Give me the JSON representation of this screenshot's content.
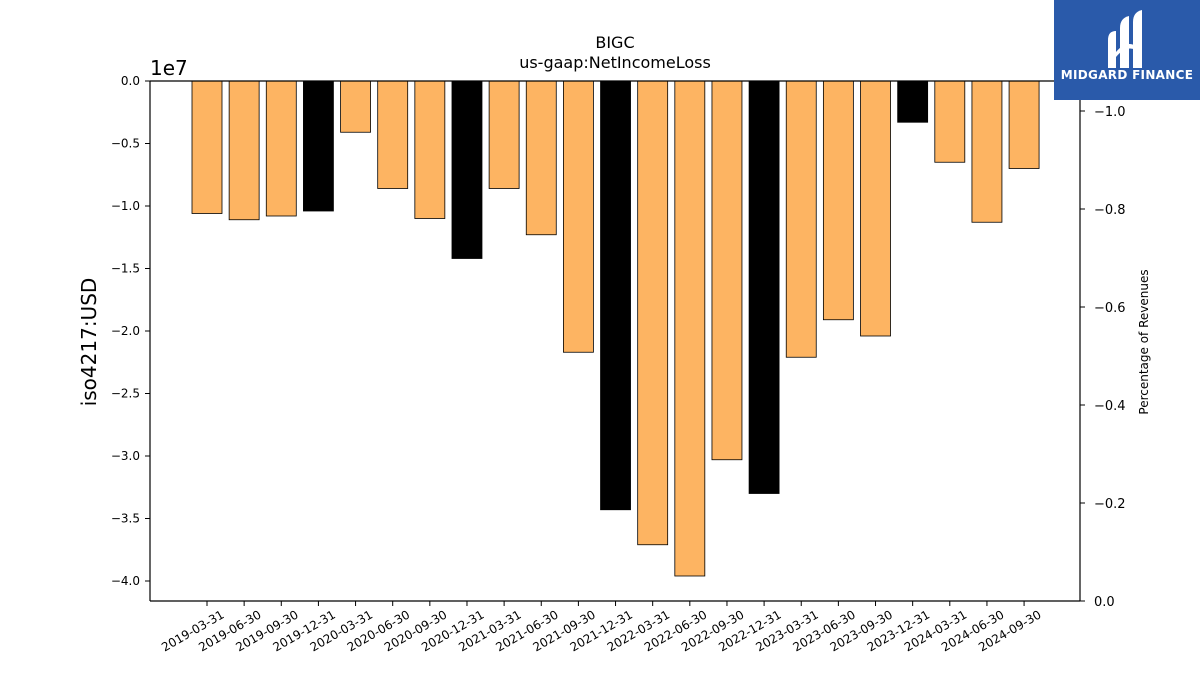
{
  "chart_data": {
    "type": "bar",
    "title": "BIGC",
    "subtitle": "us-gaap:NetIncomeLoss",
    "ylabel": "iso4217:USD",
    "y2label": "Percentage of Revenues",
    "offset_label": "1e7",
    "ylim": [
      -4.15,
      0
    ],
    "y2lim": [
      0.0,
      1.06
    ],
    "yticks": [
      "0.0",
      "−0.5",
      "−1.0",
      "−1.5",
      "−2.0",
      "−2.5",
      "−3.0",
      "−3.5",
      "−4.0"
    ],
    "y2ticks": [
      "0.0",
      "−0.2",
      "−0.4",
      "−0.6",
      "−0.8",
      "−1.0"
    ],
    "categories": [
      "2019-03-31",
      "2019-06-30",
      "2019-09-30",
      "2019-12-31",
      "2020-03-31",
      "2020-06-30",
      "2020-09-30",
      "2020-12-31",
      "2021-03-31",
      "2021-06-30",
      "2021-09-30",
      "2021-12-31",
      "2022-03-31",
      "2022-06-30",
      "2022-09-30",
      "2022-12-31",
      "2023-03-31",
      "2023-06-30",
      "2023-09-30",
      "2023-12-31",
      "2024-03-31",
      "2024-06-30",
      "2024-09-30"
    ],
    "values": [
      -1.06,
      -1.11,
      -1.08,
      -1.04,
      -0.41,
      -0.86,
      -1.1,
      -1.42,
      -0.86,
      -1.23,
      -2.17,
      -3.43,
      -3.71,
      -3.96,
      -3.03,
      -3.3,
      -2.21,
      -1.91,
      -2.04,
      -0.33,
      -0.65,
      -1.13,
      -0.7
    ],
    "colors": [
      "#fdb462",
      "#fdb462",
      "#fdb462",
      "#000000",
      "#fdb462",
      "#fdb462",
      "#fdb462",
      "#000000",
      "#fdb462",
      "#fdb462",
      "#fdb462",
      "#000000",
      "#fdb462",
      "#fdb462",
      "#fdb462",
      "#000000",
      "#fdb462",
      "#fdb462",
      "#fdb462",
      "#000000",
      "#fdb462",
      "#fdb462",
      "#fdb462"
    ],
    "grid": false,
    "legend": "none"
  },
  "logo": {
    "text": "MIDGARD FINANCE",
    "background": "#2a5aaa"
  }
}
